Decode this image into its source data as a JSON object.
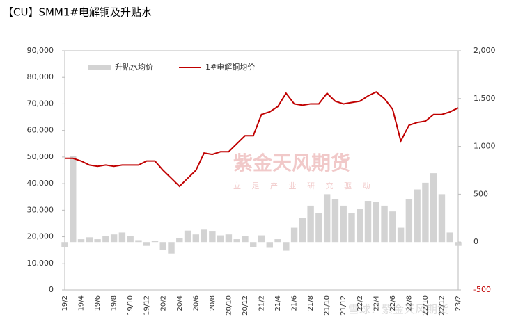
{
  "chart_data": {
    "type": "bar-line",
    "title": "【CU】SMM1#电解铜及升贴水",
    "watermarks": [
      "紫金天风期货",
      "立 足 产 业 研 究 驱 动",
      "雪球：紫金天风期货"
    ],
    "categories": [
      "19/2",
      null,
      "19/4",
      null,
      "19/6",
      null,
      "19/8",
      null,
      "19/10",
      null,
      "19/12",
      null,
      "20/2",
      null,
      "20/4",
      null,
      "20/6",
      null,
      "20/8",
      null,
      "20/10",
      null,
      "20/12",
      null,
      "21/2",
      null,
      "21/4",
      null,
      "21/6",
      null,
      "21/8",
      null,
      "21/10",
      null,
      "21/12",
      null,
      "22/2",
      null,
      "22/4",
      null,
      "22/6",
      null,
      "22/8",
      null,
      "22/10",
      null,
      "22/12",
      null,
      "23/2"
    ],
    "series": [
      {
        "name": "升贴水均价",
        "color": "#d3d3d3",
        "kind": "bar",
        "axis": "y2",
        "values": [
          -50,
          900,
          30,
          50,
          30,
          60,
          80,
          100,
          60,
          20,
          -40,
          10,
          -80,
          -120,
          40,
          120,
          80,
          130,
          110,
          70,
          80,
          30,
          60,
          -50,
          70,
          -60,
          30,
          -90,
          150,
          250,
          380,
          300,
          500,
          450,
          380,
          300,
          350,
          430,
          420,
          380,
          320,
          150,
          450,
          550,
          620,
          720,
          500,
          100,
          -40
        ]
      },
      {
        "name": "1#电解铜均价",
        "color": "#c00000",
        "kind": "line",
        "values": [
          49500,
          49500,
          48500,
          47000,
          46500,
          47000,
          46500,
          47000,
          47000,
          47000,
          48500,
          48500,
          45000,
          42000,
          39000,
          42000,
          45000,
          51500,
          51000,
          52000,
          52000,
          55000,
          58000,
          58000,
          66000,
          67000,
          69000,
          74000,
          70000,
          69500,
          70000,
          70000,
          74000,
          71000,
          70000,
          70500,
          71000,
          73000,
          74500,
          72000,
          68000,
          56000,
          62000,
          63000,
          63500,
          66000,
          66000,
          67000,
          68500
        ]
      }
    ],
    "ylim": [
      0,
      90000
    ],
    "yticks": [
      0,
      {
        "value": 10000,
        "label": "10,000"
      },
      {
        "value": 20000,
        "label": "20,000"
      },
      {
        "value": 30000,
        "label": "30,000"
      },
      {
        "value": 40000,
        "label": "40,000"
      },
      {
        "value": 50000,
        "label": "50,000"
      },
      {
        "value": 60000,
        "label": "60,000"
      },
      {
        "value": 70000,
        "label": "70,000"
      },
      {
        "value": 80000,
        "label": "80,000"
      },
      {
        "value": 90000,
        "label": "90,000"
      }
    ],
    "y2lim": [
      -500,
      2000
    ],
    "y2ticks": [
      -500,
      0,
      500,
      {
        "value": 1000,
        "label": "1,000"
      },
      {
        "value": 1500,
        "label": "1,500"
      },
      {
        "value": 2000,
        "label": "2,000"
      }
    ],
    "legend": "top-left"
  }
}
